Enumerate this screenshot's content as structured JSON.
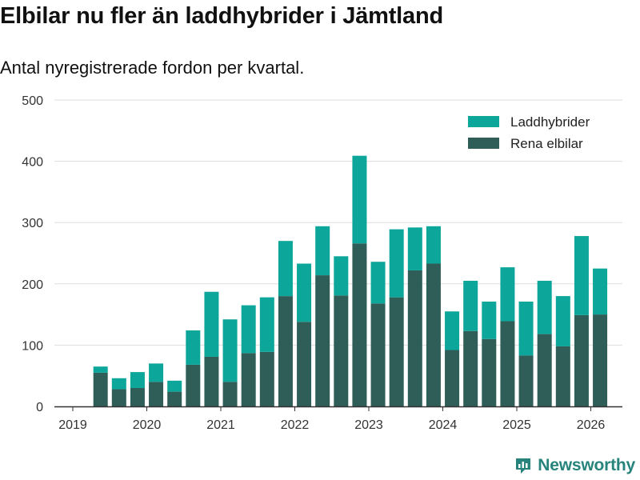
{
  "header": {
    "title": "Elbilar nu fler än laddhybrider i Jämtland",
    "subtitle": "Antal nyregistrerade fordon per kvartal."
  },
  "brand": {
    "name": "Newsworthy"
  },
  "colors": {
    "laddhybrider": "#0ca69a",
    "rena_elbilar": "#2f5d57",
    "grid": "#dddddd",
    "brand": "#26847c"
  },
  "chart_data": {
    "type": "bar",
    "stacked": true,
    "title": "Elbilar nu fler än laddhybrider i Jämtland",
    "subtitle": "Antal nyregistrerade fordon per kvartal.",
    "xlabel": "",
    "ylabel": "",
    "ylim": [
      0,
      500
    ],
    "yticks": [
      0,
      100,
      200,
      300,
      400,
      500
    ],
    "xticks": [
      "2019",
      "2020",
      "2021",
      "2022",
      "2023",
      "2024",
      "2025",
      "2026"
    ],
    "legend_position": "top-right",
    "categories": [
      "2019 Q2",
      "2019 Q3",
      "2019 Q4",
      "2020 Q1",
      "2020 Q2",
      "2020 Q3",
      "2020 Q4",
      "2021 Q1",
      "2021 Q2",
      "2021 Q3",
      "2021 Q4",
      "2022 Q1",
      "2022 Q2",
      "2022 Q3",
      "2022 Q4",
      "2023 Q1",
      "2023 Q2",
      "2023 Q3",
      "2023 Q4",
      "2024 Q1",
      "2024 Q2",
      "2024 Q3",
      "2024 Q4",
      "2025 Q1",
      "2025 Q2",
      "2025 Q3",
      "2025 Q4",
      "2026 Q1"
    ],
    "series": [
      {
        "name": "Laddhybrider",
        "color": "#0ca69a",
        "values": [
          10,
          18,
          26,
          30,
          18,
          56,
          106,
          102,
          78,
          89,
          90,
          95,
          80,
          64,
          143,
          68,
          111,
          70,
          61,
          63,
          82,
          61,
          88,
          88,
          87,
          82,
          129,
          75
        ]
      },
      {
        "name": "Rena elbilar",
        "color": "#2f5d57",
        "values": [
          55,
          28,
          30,
          40,
          24,
          68,
          81,
          40,
          87,
          89,
          180,
          138,
          214,
          181,
          266,
          168,
          178,
          222,
          233,
          92,
          123,
          110,
          139,
          83,
          118,
          98,
          149,
          150
        ]
      }
    ]
  }
}
